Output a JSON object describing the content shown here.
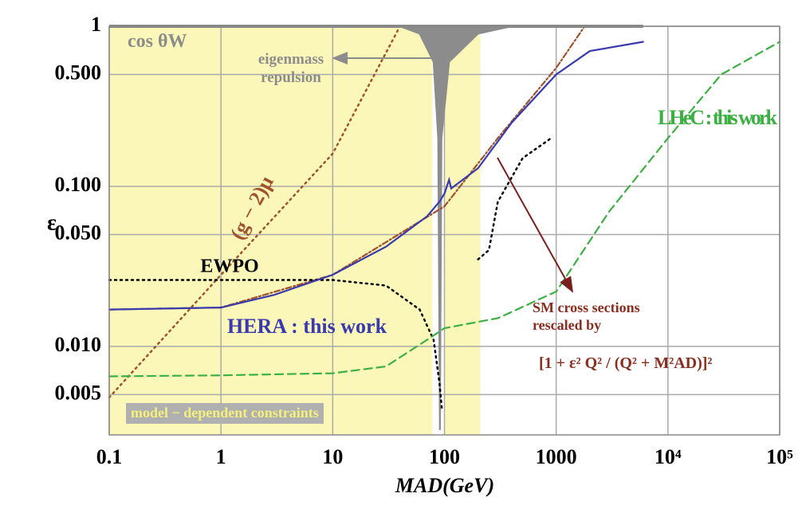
{
  "chart_data": {
    "type": "line",
    "xscale": "log",
    "yscale": "log",
    "xlim": [
      0.1,
      100000
    ],
    "ylim": [
      0.0028,
      1
    ],
    "xticks": [
      0.1,
      1,
      10,
      100,
      1000,
      {
        "value": 10000,
        "label": "10⁴"
      },
      {
        "value": 100000,
        "label": "10⁵"
      }
    ],
    "yticks": [
      1,
      {
        "value": 0.5,
        "label": "0.500"
      },
      {
        "value": 0.1,
        "label": "0.100"
      },
      {
        "value": 0.05,
        "label": "0.050"
      },
      {
        "value": 0.01,
        "label": "0.010"
      },
      {
        "value": 0.005,
        "label": "0.005"
      }
    ],
    "grid": true,
    "xlabel": "MAD(GeV)",
    "ylabel": "ε",
    "regions": [
      {
        "x": [
          0.1,
          78
        ],
        "color": "#fbf7b8"
      },
      {
        "x": [
          100,
          210
        ],
        "color": "#fbf7b8"
      }
    ],
    "series": [
      {
        "x": [
          40,
          60,
          80,
          88,
          91,
          94,
          110,
          200,
          400
        ],
        "values": [
          1,
          0.9,
          0.6,
          0.2,
          0.003,
          0.2,
          0.6,
          0.9,
          1
        ],
        "color": "#8c8c8c",
        "style": "fill"
      },
      {
        "name": "(g − 2)μ",
        "x": [
          0.1,
          1,
          10,
          40
        ],
        "values": [
          0.0048,
          0.028,
          0.16,
          1
        ],
        "color": "#a0522d",
        "style": "dotted"
      },
      {
        "x": [
          0.1,
          1,
          10,
          100,
          300,
          1000,
          1800
        ],
        "values": [
          0.017,
          0.0175,
          0.028,
          0.075,
          0.2,
          0.55,
          1
        ],
        "color": "#a0522d",
        "style": "dashdot"
      },
      {
        "name": "EWPO",
        "x": [
          0.1,
          10,
          30,
          60,
          80,
          90,
          95,
          100,
          200,
          250,
          300,
          500,
          900
        ],
        "values": [
          0.026,
          0.026,
          0.024,
          0.017,
          0.011,
          0.006,
          0.004,
          null,
          0.035,
          0.04,
          0.08,
          0.15,
          0.2
        ],
        "color": "#000000",
        "style": "dotted"
      },
      {
        "name": "LHeC : this work",
        "x": [
          0.1,
          1,
          10,
          30,
          70,
          100,
          300,
          1000,
          3000,
          10000,
          30000,
          100000
        ],
        "values": [
          0.0065,
          0.0066,
          0.0068,
          0.0075,
          0.011,
          0.013,
          0.015,
          0.022,
          0.07,
          0.2,
          0.5,
          0.8
        ],
        "color": "#3cb043",
        "style": "dashed"
      },
      {
        "name": "HERA : this work",
        "x": [
          0.1,
          1,
          3,
          10,
          30,
          70,
          90,
          100,
          110,
          115,
          200,
          400,
          1000,
          2000,
          6000
        ],
        "values": [
          0.017,
          0.0175,
          0.021,
          0.028,
          0.042,
          0.065,
          0.08,
          0.09,
          0.11,
          0.097,
          0.13,
          0.25,
          0.5,
          0.7,
          0.8
        ],
        "color": "#3a3ab0",
        "style": "solid"
      }
    ],
    "annotations": [
      "cos θW",
      "eigenmass repulsion",
      "SM cross sections rescaled by",
      "[1 + ε² Q² / (Q² + M²AD)]²",
      "model − dependent constraints"
    ]
  }
}
